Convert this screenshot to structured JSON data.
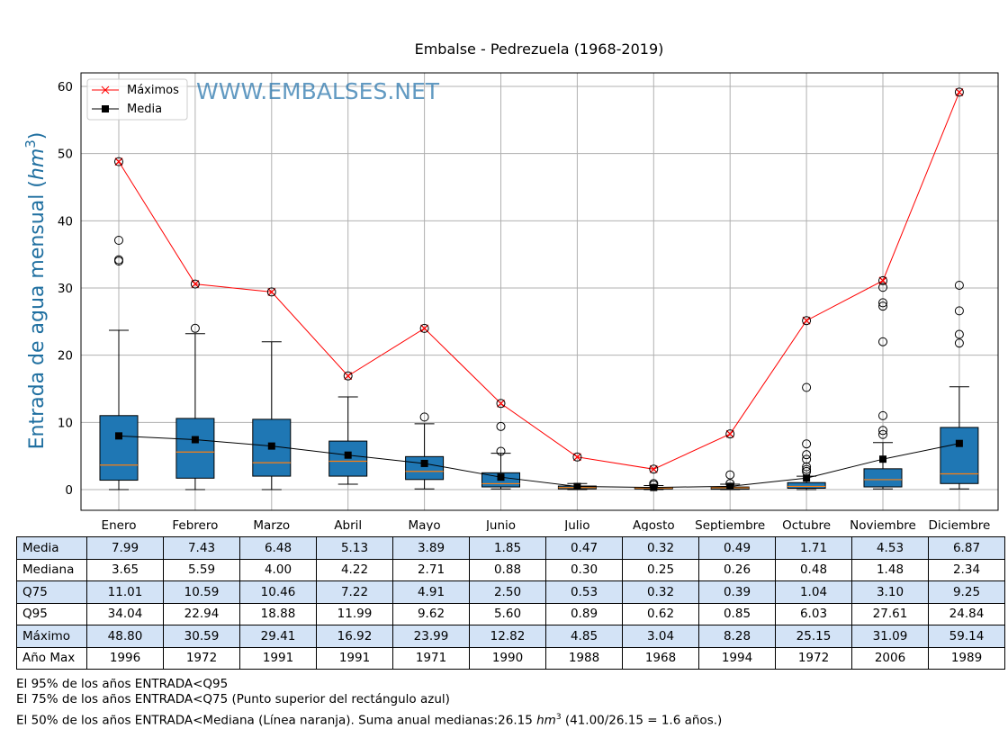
{
  "chart_data": {
    "type": "box",
    "title": "Embalse - Pedrezuela (1968-2019)",
    "ylabel": "Entrada de agua mensual (hm³)",
    "ylabel_main": "Entrada de agua mensual (",
    "ylabel_unit": "hm",
    "ylabel_exp": "3",
    "ylabel_end": ")",
    "watermark": "WWW.EMBALSES.NET",
    "ylim": [
      -3,
      62
    ],
    "yticks": [
      0,
      10,
      20,
      30,
      40,
      50,
      60
    ],
    "grid": true,
    "legend": {
      "placement": "top-left",
      "items": [
        "Máximos",
        "Media"
      ]
    },
    "categories": [
      "Enero",
      "Febrero",
      "Marzo",
      "Abril",
      "Mayo",
      "Junio",
      "Julio",
      "Agosto",
      "Septiembre",
      "Octubre",
      "Noviembre",
      "Diciembre"
    ],
    "boxes": [
      {
        "q25": 1.4,
        "median": 3.65,
        "q75": 11.01,
        "wlo": 0,
        "whi": 23.7,
        "outliers": [
          34.0,
          34.2,
          37.1
        ]
      },
      {
        "q25": 1.7,
        "median": 5.59,
        "q75": 10.59,
        "wlo": 0,
        "whi": 23.2,
        "outliers": [
          24.0
        ]
      },
      {
        "q25": 2.0,
        "median": 4.0,
        "q75": 10.46,
        "wlo": 0,
        "whi": 22.0,
        "outliers": []
      },
      {
        "q25": 2.0,
        "median": 4.22,
        "q75": 7.22,
        "wlo": 0.8,
        "whi": 13.8,
        "outliers": []
      },
      {
        "q25": 1.5,
        "median": 2.71,
        "q75": 4.91,
        "wlo": 0.1,
        "whi": 9.8,
        "outliers": [
          10.8
        ]
      },
      {
        "q25": 0.4,
        "median": 0.88,
        "q75": 2.5,
        "wlo": 0.1,
        "whi": 5.4,
        "outliers": [
          5.7,
          9.4
        ]
      },
      {
        "q25": 0.1,
        "median": 0.3,
        "q75": 0.53,
        "wlo": 0,
        "whi": 0.9,
        "outliers": []
      },
      {
        "q25": 0.1,
        "median": 0.25,
        "q75": 0.32,
        "wlo": 0,
        "whi": 0.6,
        "outliers": [
          0.7,
          0.9
        ]
      },
      {
        "q25": 0.05,
        "median": 0.26,
        "q75": 0.39,
        "wlo": 0,
        "whi": 0.8,
        "outliers": [
          0.9,
          2.2
        ]
      },
      {
        "q25": 0.2,
        "median": 0.48,
        "q75": 1.04,
        "wlo": 0,
        "whi": 2.0,
        "outliers": [
          2.7,
          3.0,
          3.4,
          4.5,
          5.2,
          6.8,
          15.2
        ]
      },
      {
        "q25": 0.4,
        "median": 1.48,
        "q75": 3.1,
        "wlo": 0.1,
        "whi": 7.0,
        "outliers": [
          8.2,
          8.8,
          11.0,
          22.0,
          27.3,
          27.8,
          30.1
        ]
      },
      {
        "q25": 0.9,
        "median": 2.34,
        "q75": 9.25,
        "wlo": 0.1,
        "whi": 15.3,
        "outliers": [
          21.8,
          23.1,
          26.6,
          30.4
        ]
      }
    ],
    "series": [
      {
        "name": "Máximos",
        "color": "#ff0000",
        "values": [
          48.8,
          30.59,
          29.41,
          16.92,
          23.99,
          12.82,
          4.85,
          3.04,
          8.28,
          25.15,
          31.09,
          59.14
        ]
      },
      {
        "name": "Media",
        "color": "#000000",
        "values": [
          7.99,
          7.43,
          6.48,
          5.13,
          3.89,
          1.85,
          0.47,
          0.32,
          0.49,
          1.71,
          4.53,
          6.87
        ]
      }
    ],
    "box_color": "#1f77b4",
    "median_color": "#ff7f0e"
  },
  "table": {
    "rows": [
      {
        "label": "Media",
        "values": [
          "7.99",
          "7.43",
          "6.48",
          "5.13",
          "3.89",
          "1.85",
          "0.47",
          "0.32",
          "0.49",
          "1.71",
          "4.53",
          "6.87"
        ]
      },
      {
        "label": "Mediana",
        "values": [
          "3.65",
          "5.59",
          "4.00",
          "4.22",
          "2.71",
          "0.88",
          "0.30",
          "0.25",
          "0.26",
          "0.48",
          "1.48",
          "2.34"
        ]
      },
      {
        "label": "Q75",
        "values": [
          "11.01",
          "10.59",
          "10.46",
          "7.22",
          "4.91",
          "2.50",
          "0.53",
          "0.32",
          "0.39",
          "1.04",
          "3.10",
          "9.25"
        ]
      },
      {
        "label": "Q95",
        "values": [
          "34.04",
          "22.94",
          "18.88",
          "11.99",
          "9.62",
          "5.60",
          "0.89",
          "0.62",
          "0.85",
          "6.03",
          "27.61",
          "24.84"
        ]
      },
      {
        "label": "Máximo",
        "values": [
          "48.80",
          "30.59",
          "29.41",
          "16.92",
          "23.99",
          "12.82",
          "4.85",
          "3.04",
          "8.28",
          "25.15",
          "31.09",
          "59.14"
        ]
      },
      {
        "label": "Año Max",
        "values": [
          "1996",
          "1972",
          "1991",
          "1991",
          "1971",
          "1990",
          "1988",
          "1968",
          "1994",
          "1972",
          "2006",
          "1989"
        ]
      }
    ]
  },
  "notes": {
    "line1": "El 95% de los años ENTRADA<Q95",
    "line2": "El 75% de los años ENTRADA<Q75 (Punto superior del rectángulo azul)",
    "line3_a": "El 50% de los años ENTRADA<Mediana (Línea naranja). Suma anual medianas:26.15 ",
    "line3_unit": "hm",
    "line3_exp": "3",
    "line3_b": " (41.00/26.15 = 1.6 años.)"
  }
}
